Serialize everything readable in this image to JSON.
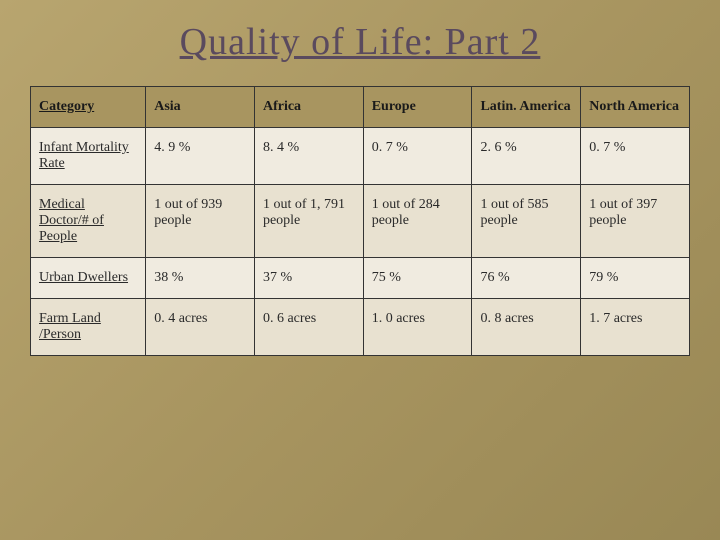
{
  "title": "Quality of Life: Part 2",
  "table": {
    "type": "table",
    "background_color": "#f0ebe0",
    "alt_row_color": "#e8e1d0",
    "header_bg_color": "#a89560",
    "border_color": "#333333",
    "title_color": "#5a4a5e",
    "title_fontsize": 38,
    "cell_fontsize": 14,
    "columns": [
      "Category",
      "Asia",
      "Africa",
      "Europe",
      "Latin. America",
      "North America"
    ],
    "rows": [
      {
        "category": "Infant Mortality Rate",
        "values": [
          "4. 9 %",
          "8. 4 %",
          "0. 7 %",
          "2. 6 %",
          "0. 7 %"
        ]
      },
      {
        "category": "Medical Doctor/# of People",
        "values": [
          "1 out of 939 people",
          "1 out of 1, 791 people",
          "1 out of 284 people",
          "1 out of 585 people",
          "1 out of 397 people"
        ]
      },
      {
        "category": "Urban Dwellers",
        "values": [
          "38 %",
          "37 %",
          "75 %",
          "76 %",
          "79 %"
        ]
      },
      {
        "category": "Farm Land /Person",
        "values": [
          "0. 4 acres",
          "0. 6 acres",
          "1. 0 acres",
          "0. 8 acres",
          "1. 7 acres"
        ]
      }
    ]
  }
}
